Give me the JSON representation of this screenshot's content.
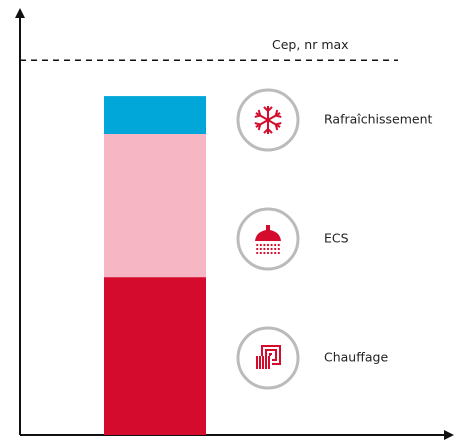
{
  "chart_data": {
    "type": "bar",
    "stacked": true,
    "categories": [
      null
    ],
    "series": [
      {
        "name": "Chauffage",
        "color": "#d50b2d",
        "values": [
          37.5
        ]
      },
      {
        "name": "ECS",
        "color": "#f7b6c3",
        "values": [
          34
        ]
      },
      {
        "name": "Rafraîchissement",
        "color": "#00a7d8",
        "values": [
          9
        ]
      }
    ],
    "ylim": [
      0,
      100
    ],
    "annotations": [
      {
        "text": "Cep, nr max",
        "y": 89
      }
    ]
  }
}
